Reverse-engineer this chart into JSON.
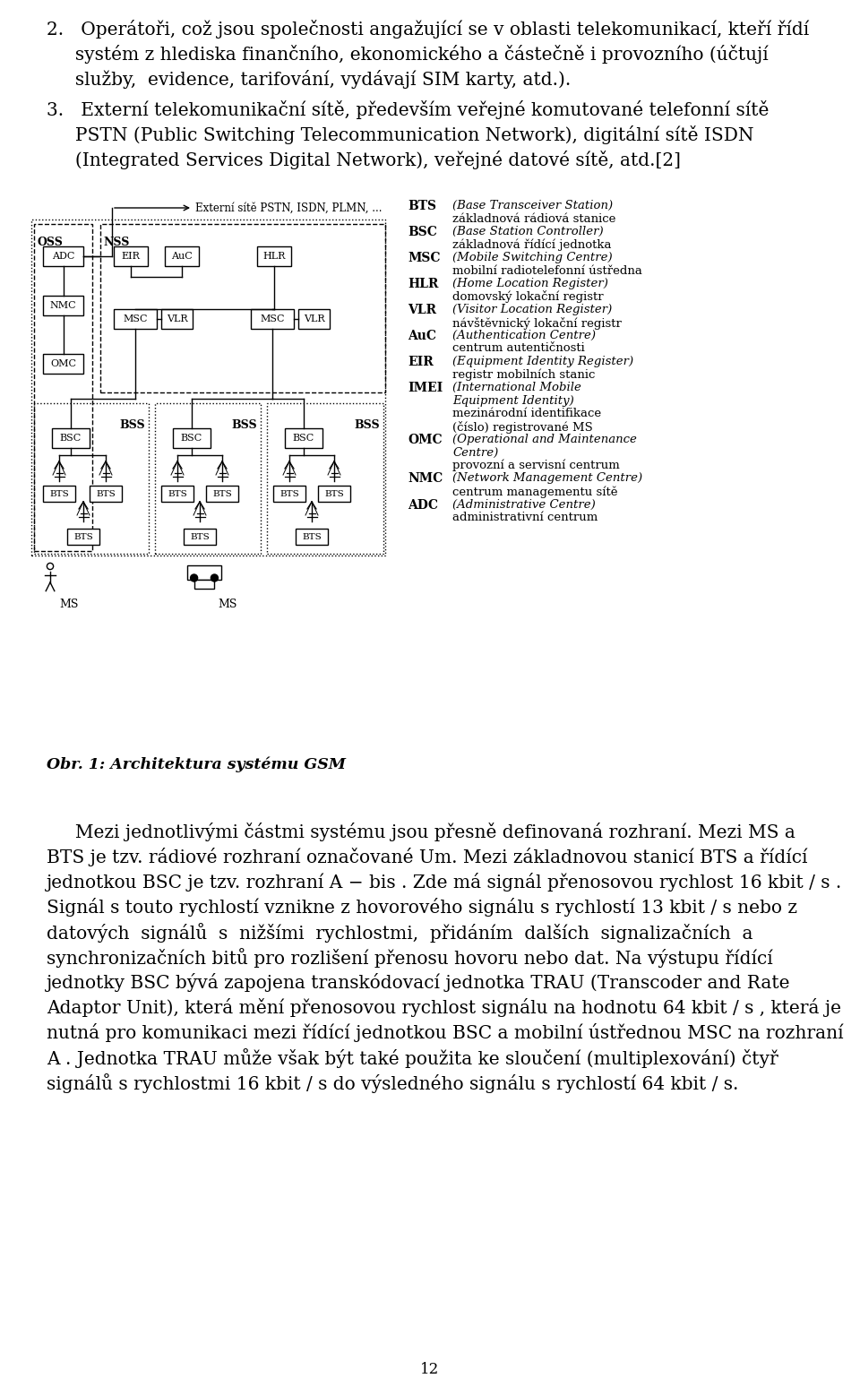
{
  "background_color": "#ffffff",
  "page_width": 9.6,
  "page_height": 15.48,
  "font_family": "serif",
  "para1_lines": [
    "2.   Operátoři, což jsou společnosti angažující se v oblasti telekomunikací, kteří řídí",
    "     systém z hlediska finančního, ekonomického a částečně i provozního (účtují",
    "     služby,  evidence, tarifování, vydávají SIM karty, atd.)."
  ],
  "para2_lines": [
    "3.   Externí telekomunikační sítě, především veřejné komutované telefonní sítě",
    "     PSTN (Public Switching Telecommunication Network), digitální sítě ISDN",
    "     (Integrated Services Digital Network), veřejné datové sítě, atd.[2]"
  ],
  "caption_text": "Obr. 1: Architektura systému GSM",
  "body_text_lines": [
    "     Mezi jednotlivými částmi systému jsou přesně definovaná rozhraní. Mezi MS a",
    "BTS je tzv. rádiové rozhraní označované Um. Mezi základnovou stanicí BTS a řídící",
    "jednotkou BSC je tzv. rozhraní A − bis . Zde má signál přenosovou rychlost 16 kbit / s .",
    "Signál s touto rychlostí vznikne z hovorového signálu s rychlostí 13 kbit / s nebo z",
    "datových  signálů  s  nižšími  rychlostmi,  přidáním  dalších  signalizačních  a",
    "synchronizačních bitů pro rozlišení přenosu hovoru nebo dat. Na výstupu řídící",
    "jednotky BSC bývá zapojena transkódovací jednotka TRAU (Transcoder and Rate",
    "Adaptor Unit), která mění přenosovou rychlost signálu na hodnotu 64 kbit / s , která je",
    "nutná pro komunikaci mezi řídící jednotkou BSC a mobilní ústřednou MSC na rozhraní",
    "A . Jednotka TRAU může však být také použita ke sloučení (multiplexování) čtyř",
    "signálů s rychlostmi 16 kbit / s do výsledného signálu s rychlostí 64 kbit / s."
  ],
  "page_number": "12",
  "legend_entries": [
    {
      "abbr": "BTS",
      "italic": "(Base Transceiver Station)",
      "normal": "základnová rádiová stanice"
    },
    {
      "abbr": "BSC",
      "italic": "(Base Station Controller)",
      "normal": "základnová řídící jednotka"
    },
    {
      "abbr": "MSC",
      "italic": "(Mobile Switching Centre)",
      "normal": "mobilní radiotelefonní ústředna"
    },
    {
      "abbr": "HLR",
      "italic": "(Home Location Register)",
      "normal": "domovský lokační registr"
    },
    {
      "abbr": "VLR",
      "italic": "(Visitor Location Register)",
      "normal": "návštěvnický lokační registr"
    },
    {
      "abbr": "AuC",
      "italic": "(Authentication Centre)",
      "normal": "centrum autentičnosti"
    },
    {
      "abbr": "EIR",
      "italic": "(Equipment Identity Register)",
      "normal": "registr mobilních stanic"
    },
    {
      "abbr": "IMEI",
      "italic": "(International Mobile",
      "normal": ""
    },
    {
      "abbr": "",
      "italic": "Equipment Identity)",
      "normal": ""
    },
    {
      "abbr": "",
      "italic": "",
      "normal": "mezinárodní identifikace"
    },
    {
      "abbr": "",
      "italic": "",
      "normal": "(číslo) registrované MS"
    },
    {
      "abbr": "OMC",
      "italic": "(Operational and Maintenance",
      "normal": ""
    },
    {
      "abbr": "",
      "italic": "Centre)",
      "normal": ""
    },
    {
      "abbr": "",
      "italic": "",
      "normal": "provozní a servisní centrum"
    },
    {
      "abbr": "NMC",
      "italic": "(Network Management Centre)",
      "normal": "centrum managementu sítě"
    },
    {
      "abbr": "ADC",
      "italic": "(Administrative Centre)",
      "normal": "administrativní centrum"
    }
  ]
}
